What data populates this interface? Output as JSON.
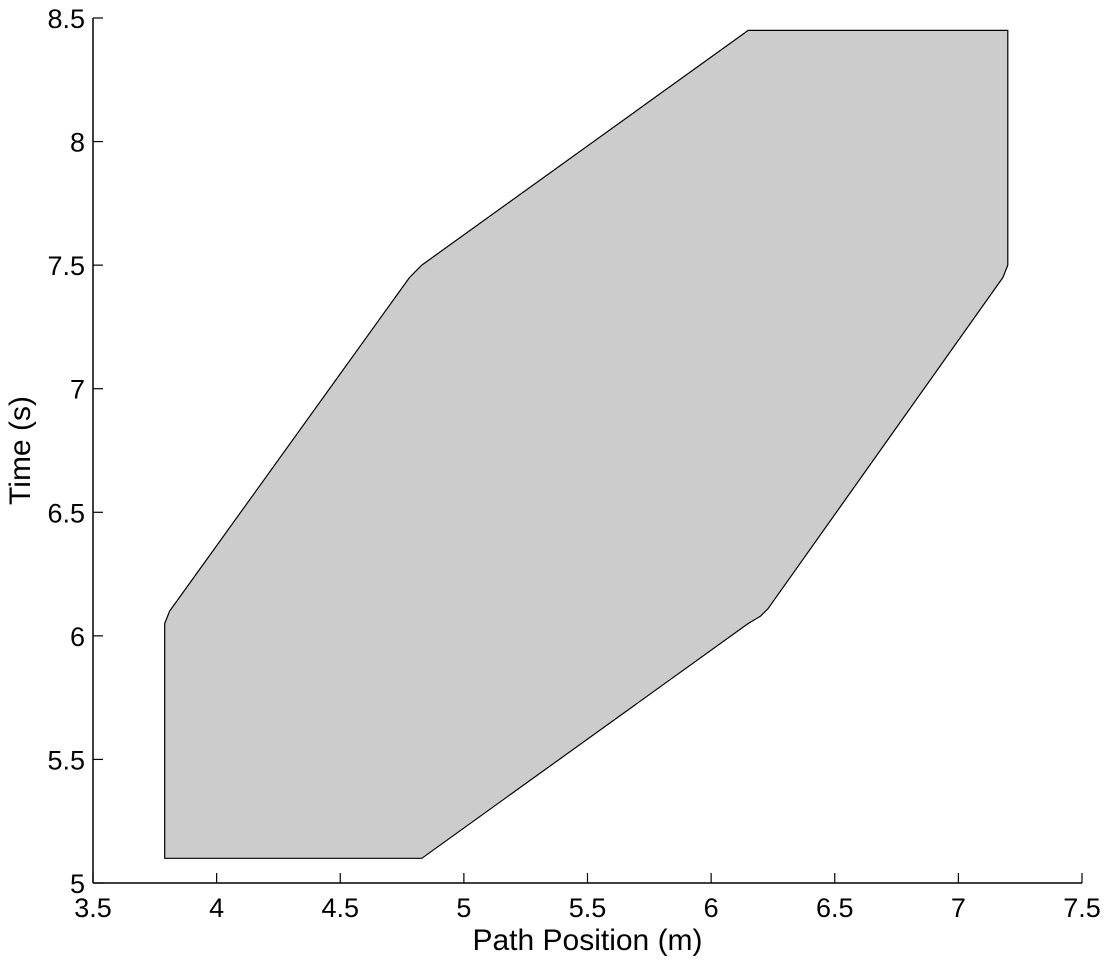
{
  "chart_data": {
    "type": "area",
    "title": "",
    "xlabel": "Path Position (m)",
    "ylabel": "Time (s)",
    "xlim": [
      3.5,
      7.5
    ],
    "ylim": [
      5,
      8.5
    ],
    "xticks": [
      3.5,
      4,
      4.5,
      5,
      5.5,
      6,
      6.5,
      7,
      7.5
    ],
    "yticks": [
      5,
      5.5,
      6,
      6.5,
      7,
      7.5,
      8,
      8.5
    ],
    "xtick_labels": [
      "3.5",
      "4",
      "4.5",
      "5",
      "5.5",
      "6",
      "6.5",
      "7",
      "7.5"
    ],
    "ytick_labels": [
      "5",
      "5.5",
      "6",
      "6.5",
      "7",
      "7.5",
      "8",
      "8.5"
    ],
    "grid": false,
    "legend": "none",
    "region": {
      "fill_color": "#cccccc",
      "edge_color": "#000000",
      "x": [
        3.79,
        4.83,
        6.15,
        6.2,
        6.23,
        7.18,
        7.2,
        7.2,
        6.15,
        4.83,
        4.78,
        3.81,
        3.79,
        3.79
      ],
      "y": [
        5.1,
        5.1,
        6.05,
        6.08,
        6.11,
        7.45,
        7.5,
        8.45,
        8.45,
        7.5,
        7.45,
        6.1,
        6.05,
        5.1
      ]
    }
  }
}
